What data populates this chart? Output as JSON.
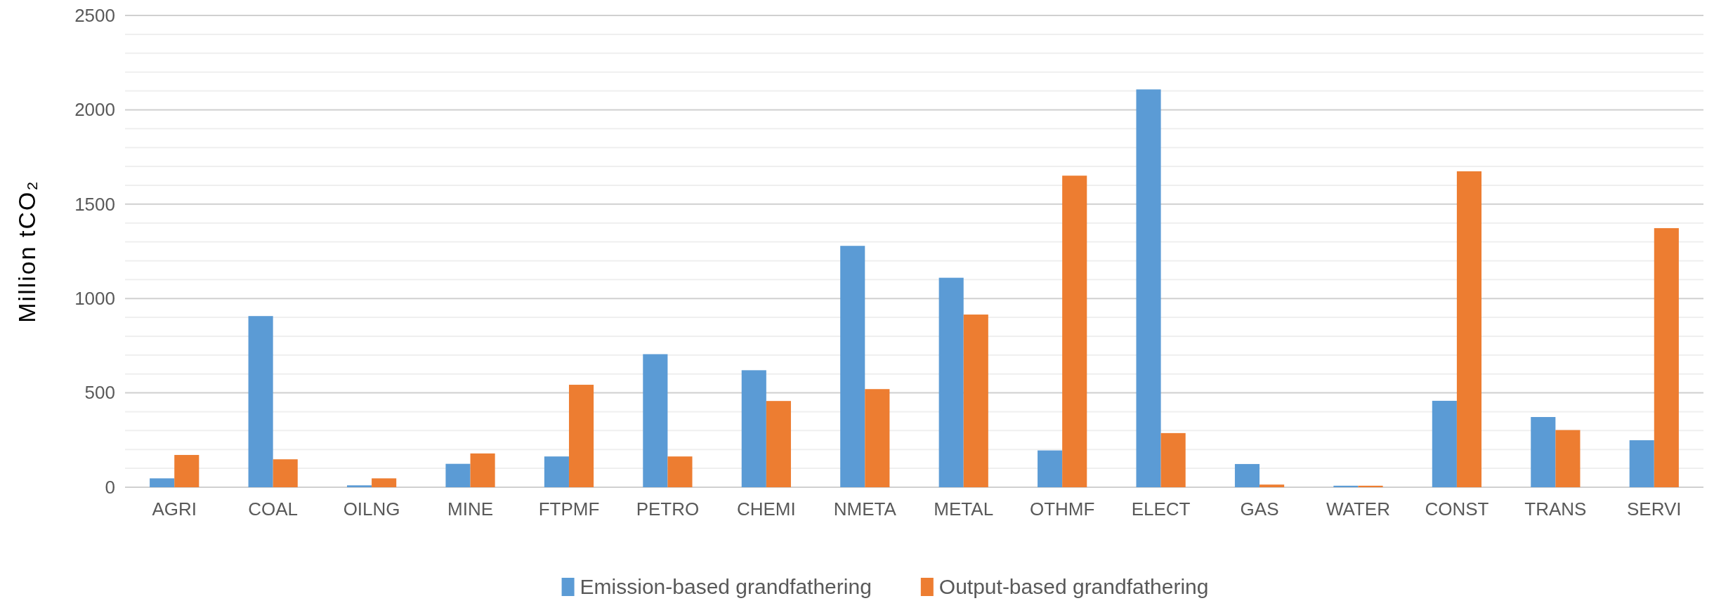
{
  "chart_data": {
    "type": "bar",
    "ylabel": "Million  tCO₂",
    "categories": [
      "AGRI",
      "COAL",
      "OILNG",
      "MINE",
      "FTPMF",
      "PETRO",
      "CHEMI",
      "NMETA",
      "METAL",
      "OTHMF",
      "ELECT",
      "GAS",
      "WATER",
      "CONST",
      "TRANS",
      "SERVI"
    ],
    "series": [
      {
        "name": "Emission-based grandfathering",
        "color": "#5b9bd5",
        "values": [
          47,
          907,
          10,
          124,
          163,
          705,
          620,
          1279,
          1110,
          195,
          2108,
          123,
          8,
          458,
          372,
          249
        ]
      },
      {
        "name": "Output-based grandfathering",
        "color": "#ed7d31",
        "values": [
          171,
          148,
          47,
          179,
          543,
          163,
          457,
          520,
          915,
          1651,
          287,
          14,
          8,
          1674,
          303,
          1373
        ]
      }
    ],
    "ylim": [
      0,
      2500
    ],
    "yticks": [
      0,
      {
        "value": 100,
        "label": null
      },
      {
        "value": 200,
        "label": null
      },
      {
        "value": 300,
        "label": null
      },
      {
        "value": 400,
        "label": null
      },
      500,
      {
        "value": 600,
        "label": null
      },
      {
        "value": 700,
        "label": null
      },
      {
        "value": 800,
        "label": null
      },
      {
        "value": 900,
        "label": null
      },
      1000,
      {
        "value": 1100,
        "label": null
      },
      {
        "value": 1200,
        "label": null
      },
      {
        "value": 1300,
        "label": null
      },
      {
        "value": 1400,
        "label": null
      },
      1500,
      {
        "value": 1600,
        "label": null
      },
      {
        "value": 1700,
        "label": null
      },
      {
        "value": 1800,
        "label": null
      },
      {
        "value": 1900,
        "label": null
      },
      2000,
      {
        "value": 2100,
        "label": null
      },
      {
        "value": 2200,
        "label": null
      },
      {
        "value": 2300,
        "label": null
      },
      {
        "value": 2400,
        "label": null
      },
      2500
    ],
    "grid": "y",
    "legend": "bottom"
  }
}
